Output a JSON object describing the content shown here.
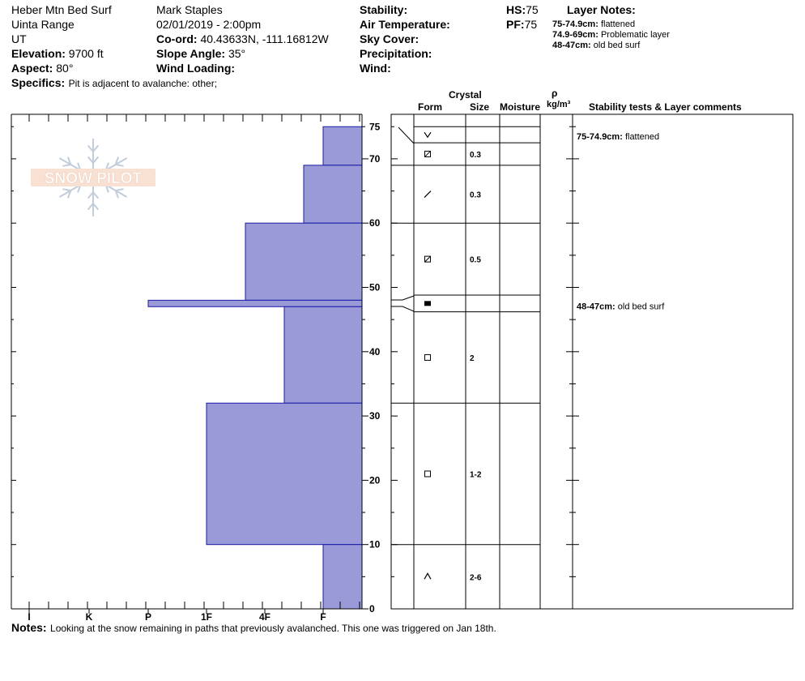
{
  "header": {
    "pit_name": "Heber Mtn Bed Surf",
    "range": "Uinta Range",
    "state": "UT",
    "elevation_label": "Elevation:",
    "elevation_value": "9700 ft",
    "aspect_label": "Aspect:",
    "aspect_value": "80°",
    "specifics_label": "Specifics:",
    "specifics_value": "Pit is adjacent to avalanche: other;",
    "observer": "Mark Staples",
    "datetime": "02/01/2019 - 2:00pm",
    "coord_label": "Co-ord:",
    "coord_value": "40.43633N, -111.16812W",
    "slope_label": "Slope Angle:",
    "slope_value": "35°",
    "wind_loading_label": "Wind Loading:",
    "stability_label": "Stability:",
    "air_temp_label": "Air Temperature:",
    "sky_label": "Sky Cover:",
    "precip_label": "Precipitation:",
    "wind_label": "Wind:",
    "hs_label": "HS:",
    "hs_value": "75",
    "pf_label": "PF:",
    "pf_value": "75",
    "layer_notes_title": "Layer Notes:",
    "layer_notes": [
      {
        "range": "75-74.9cm:",
        "text": "flattened"
      },
      {
        "range": "74.9-69cm:",
        "text": "Problematic layer"
      },
      {
        "range": "48-47cm:",
        "text": "old bed surf"
      }
    ]
  },
  "logo_text": "SNOW PILOT",
  "columns": {
    "crystal": "Crystal",
    "form": "Form",
    "size": "Size",
    "moisture": "Moisture",
    "rho": "ρ",
    "density_unit": "kg/m³",
    "stability": "Stability tests & Layer comments"
  },
  "chart_data": {
    "type": "bar",
    "title": "",
    "ylabel": "",
    "xlabel": "",
    "ylim": [
      0,
      77
    ],
    "y_ticks": [
      0,
      10,
      20,
      30,
      40,
      50,
      60,
      70,
      75
    ],
    "hardness_scale": [
      "I",
      "K",
      "P",
      "1F",
      "4F",
      "F"
    ],
    "hardness_scale_order_note": "left=hard, right=soft",
    "hardness_profile": [
      {
        "top": 75,
        "bottom": 69,
        "hardness": "F"
      },
      {
        "top": 69,
        "bottom": 60,
        "hardness": "F+"
      },
      {
        "top": 60,
        "bottom": 48,
        "hardness": "4F"
      },
      {
        "top": 48,
        "bottom": 47,
        "hardness": "P"
      },
      {
        "top": 47,
        "bottom": 32,
        "hardness": "4F+"
      },
      {
        "top": 32,
        "bottom": 10,
        "hardness": "1F+"
      },
      {
        "top": 10,
        "bottom": 0,
        "hardness": "F"
      }
    ],
    "layers": [
      {
        "top": 75,
        "bottom": 72.5,
        "form": "v",
        "size": ""
      },
      {
        "top": 72.5,
        "bottom": 69,
        "form": "box-slash",
        "size": "0.3"
      },
      {
        "top": 69,
        "bottom": 60,
        "form": "slash",
        "size": "0.3"
      },
      {
        "top": 60,
        "bottom": 48.8,
        "form": "box-slash",
        "size": "0.5"
      },
      {
        "top": 48.8,
        "bottom": 46.2,
        "form": "filled-box",
        "size": ""
      },
      {
        "top": 46.2,
        "bottom": 32,
        "form": "box",
        "size": "2"
      },
      {
        "top": 32,
        "bottom": 10,
        "form": "box",
        "size": "1-2"
      },
      {
        "top": 10,
        "bottom": 0,
        "form": "caret",
        "size": "2-6"
      }
    ],
    "comments": [
      {
        "depth": 73.5,
        "range": "75-74.9cm:",
        "text": "flattened"
      },
      {
        "depth": 47.1,
        "range": "48-47cm:",
        "text": "old bed surf"
      }
    ],
    "fill_color": "#9a9ad8",
    "edge_color": "#1a1aa8"
  },
  "notes": {
    "label": "Notes:",
    "text": "Looking at the snow remaining in paths that previously avalanched. This one was triggered on Jan 18th."
  }
}
